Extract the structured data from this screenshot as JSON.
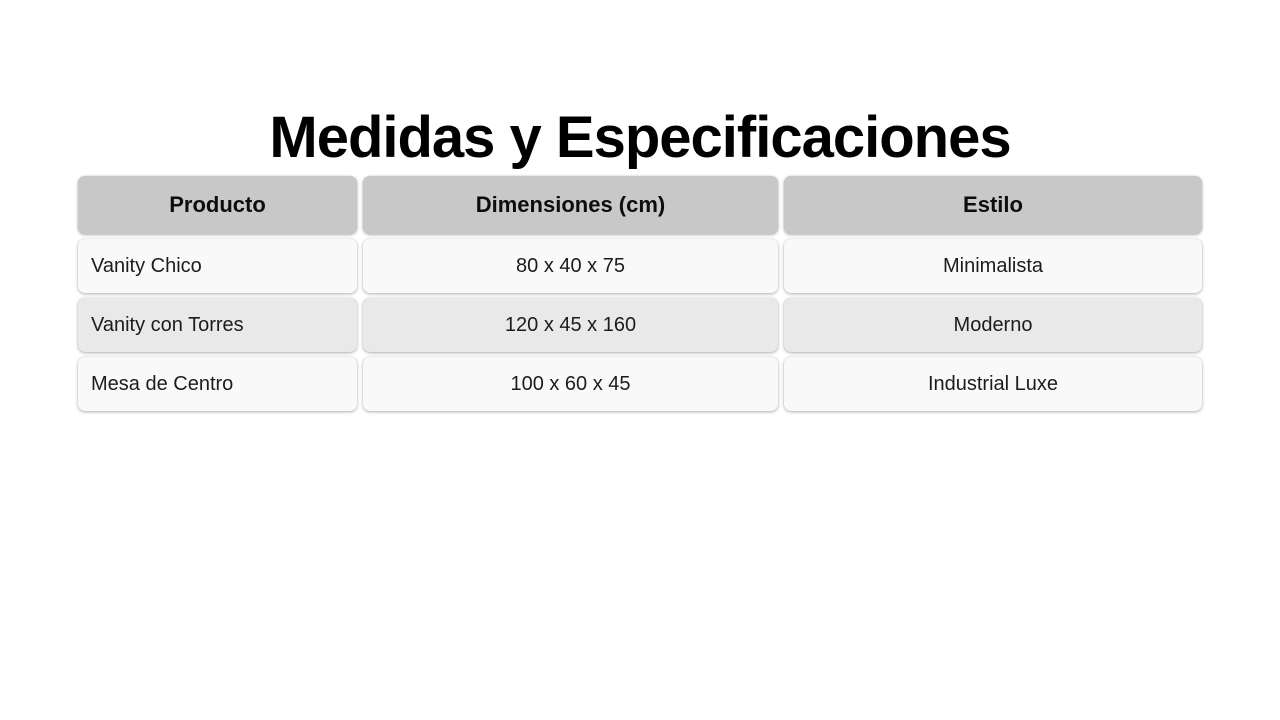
{
  "page": {
    "background": "#ffffff",
    "title": "Medidas y Especificaciones"
  },
  "table": {
    "headers": [
      "Producto",
      "Dimensiones (cm)",
      "Estilo"
    ],
    "rows": [
      [
        "Vanity Chico",
        "80 x 40 x 75",
        "Minimalista"
      ],
      [
        "Vanity con Torres",
        "120 x 45 x 160",
        "Moderno"
      ],
      [
        "Mesa de Centro",
        "100 x 60 x 45",
        "Industrial Luxe"
      ]
    ],
    "colors": {
      "header_bg": "#c8c8c8",
      "row_light": "#f9f9f9",
      "row_dark": "#e9e9e9",
      "header_text": "#0d0d0d",
      "body_text": "#1c1c1c",
      "title_text": "#000000"
    }
  }
}
